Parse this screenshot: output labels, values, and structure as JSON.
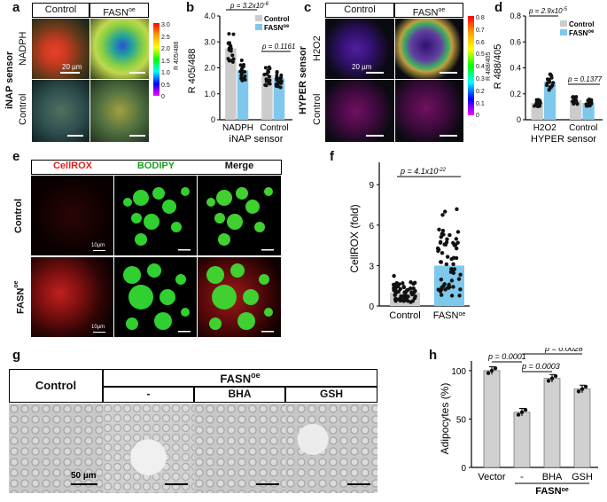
{
  "panels": {
    "a": {
      "letter": "a",
      "col_control": "Control",
      "col_fasn": "FASN",
      "col_fasn_sup": "oe",
      "row1": "NADPH",
      "row2": "Control",
      "side": "iNAP sensor",
      "scalebar": "20 µm",
      "cbar_label": "R 405/488",
      "cbar_ticks": [
        "3.0",
        "2.5",
        "2.0",
        "1.5",
        "1.0",
        "0.5",
        "0"
      ]
    },
    "b": {
      "letter": "b"
    },
    "c": {
      "letter": "c",
      "col_control": "Control",
      "col_fasn": "FASN",
      "col_fasn_sup": "oe",
      "row1": "H2O2",
      "row2": "Control",
      "side": "HYPER sensor",
      "scalebar": "20 µm",
      "cbar_label": "R 488/405",
      "cbar_ticks": [
        "0.8",
        "0.7",
        "0.6",
        "0.5",
        "0.4",
        "0.3",
        "0.2",
        "0.1",
        "0"
      ]
    },
    "d": {
      "letter": "d"
    },
    "e": {
      "letter": "e",
      "col1": "CellROX",
      "col2": "BODIPY",
      "col3": "Merge",
      "row1": "Control",
      "row2": "FASN",
      "row2_sup": "oe",
      "scalebar": "10µm"
    },
    "f": {
      "letter": "f"
    },
    "g": {
      "letter": "g",
      "header_control": "Control",
      "header_fasn": "FASN",
      "header_fasn_sup": "oe",
      "sub1": "-",
      "sub2": "BHA",
      "sub3": "GSH",
      "scalebar": "50 µm"
    },
    "h": {
      "letter": "h"
    }
  },
  "chart_data": [
    {
      "panel": "b",
      "type": "bar",
      "ylabel": "R 405/488",
      "xlabel": "iNAP sensor",
      "categories": [
        "NADPH",
        "Control"
      ],
      "series": [
        {
          "name": "Control",
          "values": [
            2.75,
            1.7
          ],
          "color": "#cccccc"
        },
        {
          "name": "FASN",
          "name_sup": "oe",
          "values": [
            1.9,
            1.6
          ],
          "color": "#7ec8ee"
        }
      ],
      "ylim": [
        0,
        4.0
      ],
      "yticks": [
        "0",
        "1.0",
        "2.0",
        "3.0",
        "4.0"
      ],
      "annotations": [
        "p = 3.2x10",
        "-6",
        "p = 0.1161"
      ],
      "legend": "top-right"
    },
    {
      "panel": "d",
      "type": "bar",
      "ylabel": "R 488/405",
      "xlabel": "HYPER sensor",
      "categories": [
        "H2O2",
        "Control"
      ],
      "series": [
        {
          "name": "Control",
          "values": [
            0.13,
            0.15
          ],
          "color": "#cccccc"
        },
        {
          "name": "FASN",
          "name_sup": "oe",
          "values": [
            0.29,
            0.13
          ],
          "color": "#7ec8ee"
        }
      ],
      "ylim": [
        0,
        0.8
      ],
      "yticks": [
        "0",
        "0.2",
        "0.4",
        "0.6",
        "0.8"
      ],
      "annotations": [
        "p = 2.9x10",
        "-5",
        "p = 0.1377"
      ],
      "legend": "top-right"
    },
    {
      "panel": "f",
      "type": "bar",
      "ylabel": "CellROX (fold)",
      "categories": [
        "Control",
        "FASN"
      ],
      "cat_sup": [
        "",
        "oe"
      ],
      "values": [
        1.0,
        3.0
      ],
      "colors": [
        "#cccccc",
        "#7ec8ee"
      ],
      "ylim": [
        0,
        10
      ],
      "yticks": [
        "0",
        "3",
        "6",
        "9"
      ],
      "annotations": [
        "p = 4.1x10",
        "-22"
      ]
    },
    {
      "panel": "h",
      "type": "bar",
      "ylabel": "Adipocytes (%)",
      "categories": [
        "Vector",
        "-",
        "BHA",
        "GSH"
      ],
      "group_label": "FASN",
      "group_label_sup": "oe",
      "values": [
        100,
        57,
        92,
        81
      ],
      "color": "#d0d0d0",
      "ylim": [
        0,
        110
      ],
      "yticks": [
        "0",
        "50",
        "100"
      ],
      "annotations": [
        "p = 0.0001",
        "p = 0.0003",
        "p = 0.0028"
      ]
    }
  ]
}
